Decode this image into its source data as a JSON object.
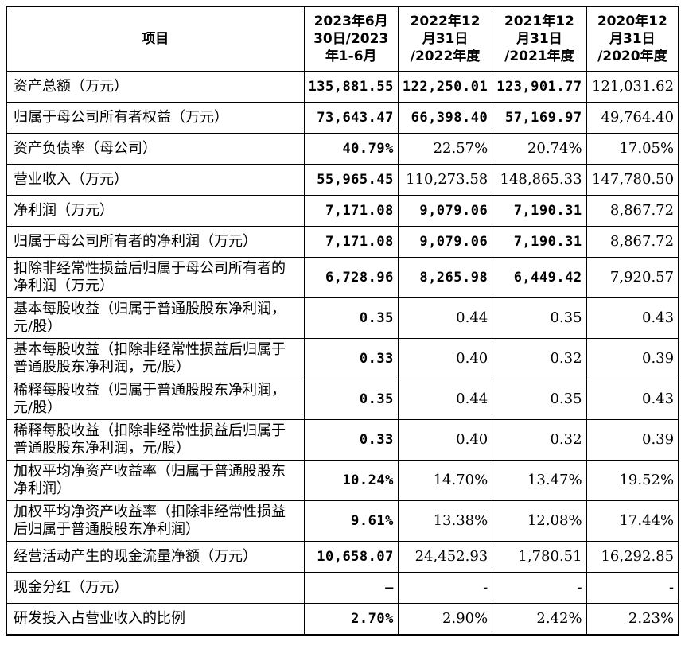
{
  "table": {
    "header": [
      [
        "项目"
      ],
      [
        "2023年6月",
        "30日/2023",
        "年1-6月"
      ],
      [
        "2022年12",
        "月31日",
        "/2022年度"
      ],
      [
        "2021年12",
        "月31日",
        "/2021年度"
      ],
      [
        "2020年12",
        "月31日",
        "/2020年度"
      ]
    ],
    "rows": [
      [
        "资产总额（万元）",
        "135,881.55",
        "122,250.01",
        "123,901.77",
        "121,031.62"
      ],
      [
        "归属于母公司所有者权益（万元）",
        "73,643.47",
        "66,398.40",
        "57,169.97",
        "49,764.40"
      ],
      [
        "资产负债率（母公司）",
        "40.79%",
        "22.57%",
        "20.74%",
        "17.05%"
      ],
      [
        "营业收入（万元）",
        "55,965.45",
        "110,273.58",
        "148,865.33",
        "147,780.50"
      ],
      [
        "净利润（万元）",
        "7,171.08",
        "9,079.06",
        "7,190.31",
        "8,867.72"
      ],
      [
        "归属于母公司所有者的净利润（万元）",
        "7,171.08",
        "9,079.06",
        "7,190.31",
        "8,867.72"
      ],
      [
        "扣除非经常性损益后归属于母公司所有者的净利润（万元）",
        "6,728.96",
        "8,265.98",
        "6,449.42",
        "7,920.57"
      ],
      [
        "基本每股收益（归属于普通股股东净利润，元/股）",
        "0.35",
        "0.44",
        "0.35",
        "0.43"
      ],
      [
        "基本每股收益（扣除非经常性损益后归属于普通股股东净利润，元/股）",
        "0.33",
        "0.40",
        "0.32",
        "0.39"
      ],
      [
        "稀释每股收益（归属于普通股股东净利润，元/股）",
        "0.35",
        "0.44",
        "0.35",
        "0.43"
      ],
      [
        "稀释每股收益（扣除非经常性损益后归属于普通股股东净利润，元/股）",
        "0.33",
        "0.40",
        "0.32",
        "0.39"
      ],
      [
        "加权平均净资产收益率（归属于普通股股东净利润）",
        "10.24%",
        "14.70%",
        "13.47%",
        "19.52%"
      ],
      [
        "加权平均净资产收益率（扣除非经常性损益后归属于普通股股东净利润）",
        "9.61%",
        "13.38%",
        "12.08%",
        "17.44%"
      ],
      [
        "经营活动产生的现金流量净额（万元）",
        "10,658.07",
        "24,452.93",
        "1,780.51",
        "16,292.85"
      ],
      [
        "现金分红（万元）",
        "–",
        "-",
        "-",
        "-"
      ],
      [
        "研发投入占营业收入的比例",
        "2.70%",
        "2.90%",
        "2.42%",
        "2.23%"
      ]
    ]
  }
}
